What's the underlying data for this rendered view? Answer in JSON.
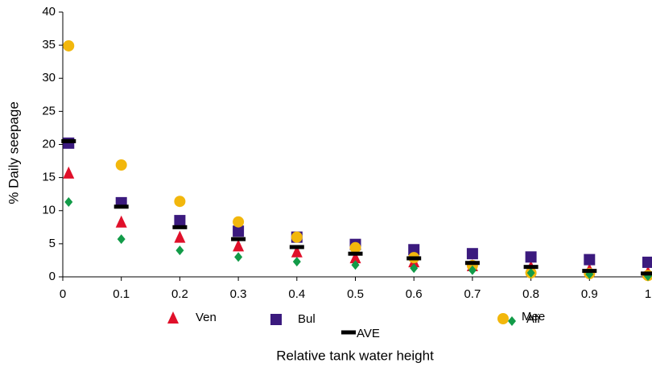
{
  "chart_data": {
    "type": "scatter",
    "x_label": "Relative tank water height",
    "y_label": "% Daily seepage",
    "x": [
      0.01,
      0.1,
      0.2,
      0.3,
      0.4,
      0.5,
      0.6,
      0.7,
      0.8,
      0.9,
      1.0
    ],
    "series": [
      {
        "name": "Ven",
        "color": "#e0102a",
        "marker": "triangle",
        "values": [
          15.7,
          8.3,
          6.0,
          4.7,
          3.8,
          2.9,
          2.3,
          1.7,
          1.5,
          1.1,
          0.7
        ]
      },
      {
        "name": "Bul",
        "color": "#3b1a7e",
        "marker": "square",
        "values": [
          20.2,
          11.2,
          8.5,
          6.9,
          6.0,
          4.9,
          4.1,
          3.5,
          3.0,
          2.6,
          2.2
        ]
      },
      {
        "name": "Mee",
        "color": "#f2b70c",
        "marker": "circle",
        "values": [
          34.9,
          16.9,
          11.4,
          8.3,
          6.0,
          4.4,
          2.9,
          1.7,
          0.6,
          0.5,
          0.2
        ]
      },
      {
        "name": "Ali",
        "color": "#129b48",
        "marker": "diamond",
        "values": [
          11.3,
          5.7,
          4.0,
          3.0,
          2.3,
          1.8,
          1.3,
          1.0,
          0.6,
          0.4,
          0.1
        ]
      },
      {
        "name": "AVE",
        "color": "#000000",
        "marker": "dash",
        "values": [
          20.5,
          10.6,
          7.5,
          5.7,
          4.5,
          3.5,
          2.8,
          2.1,
          1.5,
          0.9,
          0.5
        ]
      }
    ],
    "xlim": [
      0,
      1
    ],
    "xticks": [
      0,
      0.1,
      0.2,
      0.3,
      0.4,
      0.5,
      0.6,
      0.7,
      0.8,
      0.9,
      1
    ],
    "ylim": [
      0,
      40
    ],
    "yticks": [
      0,
      5,
      10,
      15,
      20,
      25,
      30,
      35,
      40
    ],
    "grid": false
  }
}
